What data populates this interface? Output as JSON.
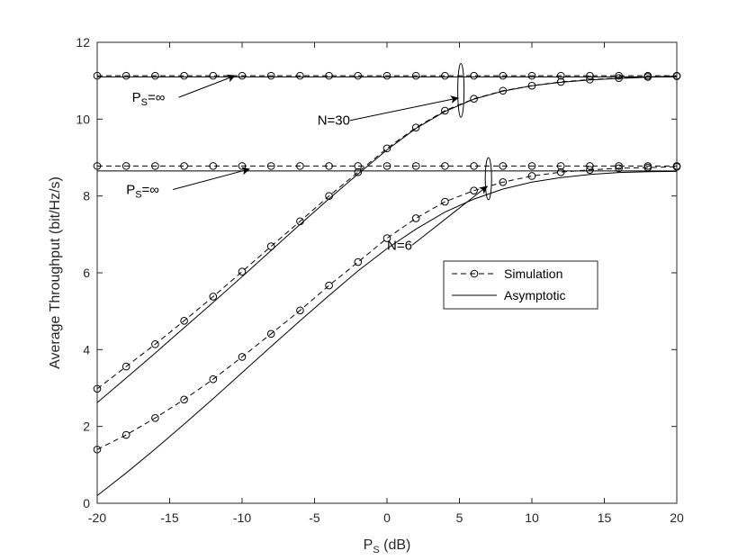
{
  "chart_data": {
    "type": "line",
    "title": "",
    "xlabel": {
      "main": "P",
      "sub": "S",
      "rest": " (dB)"
    },
    "ylabel": "Average Throughput (bit/Hz/s)",
    "xlim": [
      -20,
      20
    ],
    "ylim": [
      0,
      12
    ],
    "xticks": [
      -20,
      -15,
      -10,
      -5,
      0,
      5,
      10,
      15,
      20
    ],
    "xtick_labels": [
      "-20",
      "-15",
      "-10",
      "-5",
      "0",
      "5",
      "10",
      "15",
      "20"
    ],
    "yticks": [
      0,
      2,
      4,
      6,
      8,
      10,
      12
    ],
    "ytick_labels": [
      "0",
      "2",
      "4",
      "6",
      "8",
      "10",
      "12"
    ],
    "grid": false,
    "legend": {
      "placement": "center-right",
      "entries": [
        {
          "label": "Simulation",
          "style": "dashed-circle"
        },
        {
          "label": "Asymptotic",
          "style": "solid"
        }
      ]
    },
    "colors": {
      "line": "#000000",
      "axis": "#262626"
    },
    "series": [
      {
        "group": "N=30",
        "kind": "Simulation",
        "style": "dashed-circle",
        "x": [
          -20,
          -18,
          -16,
          -14,
          -12,
          -10,
          -8,
          -6,
          -4,
          -2,
          0,
          2,
          4,
          6,
          8,
          10,
          12,
          14,
          16,
          18,
          20
        ],
        "y": [
          2.98,
          3.56,
          4.14,
          4.75,
          5.38,
          6.03,
          6.69,
          7.34,
          8.0,
          8.62,
          9.24,
          9.78,
          10.22,
          10.53,
          10.74,
          10.87,
          10.97,
          11.03,
          11.07,
          11.1,
          11.12
        ]
      },
      {
        "group": "N=30",
        "kind": "Asymptotic",
        "style": "solid",
        "x": [
          -20,
          -18,
          -16,
          -14,
          -12,
          -10,
          -8,
          -6,
          -4,
          -2,
          0,
          2,
          4,
          6,
          8,
          10,
          12,
          14,
          16,
          18,
          20
        ],
        "y": [
          2.62,
          3.26,
          3.91,
          4.57,
          5.23,
          5.9,
          6.58,
          7.26,
          7.93,
          8.57,
          9.2,
          9.76,
          10.2,
          10.52,
          10.73,
          10.87,
          10.96,
          11.02,
          11.06,
          11.09,
          11.11
        ]
      },
      {
        "group": "N=30",
        "kind": "Simulation",
        "style": "dashed-circle",
        "label": "P_S=∞",
        "x": [
          -20,
          -18,
          -16,
          -14,
          -12,
          -10,
          -8,
          -6,
          -4,
          -2,
          0,
          2,
          4,
          6,
          8,
          10,
          12,
          14,
          16,
          18,
          20
        ],
        "y": [
          11.13,
          11.13,
          11.13,
          11.13,
          11.13,
          11.13,
          11.13,
          11.13,
          11.13,
          11.13,
          11.13,
          11.13,
          11.13,
          11.13,
          11.13,
          11.13,
          11.13,
          11.13,
          11.13,
          11.13,
          11.13
        ]
      },
      {
        "group": "N=30",
        "kind": "Asymptotic",
        "style": "solid",
        "label": "P_S=∞",
        "x": [
          -20,
          20
        ],
        "y": [
          11.1,
          11.1
        ]
      },
      {
        "group": "N=6",
        "kind": "Simulation",
        "style": "dashed-circle",
        "x": [
          -20,
          -18,
          -16,
          -14,
          -12,
          -10,
          -8,
          -6,
          -4,
          -2,
          0,
          2,
          4,
          6,
          8,
          10,
          12,
          14,
          16,
          18,
          20
        ],
        "y": [
          1.4,
          1.78,
          2.22,
          2.7,
          3.23,
          3.81,
          4.41,
          5.02,
          5.67,
          6.28,
          6.9,
          7.42,
          7.85,
          8.14,
          8.36,
          8.52,
          8.62,
          8.68,
          8.72,
          8.74,
          8.76
        ]
      },
      {
        "group": "N=6",
        "kind": "Asymptotic",
        "style": "solid",
        "x": [
          -20,
          -18,
          -16,
          -14,
          -12,
          -10,
          -8,
          -6,
          -4,
          -2,
          0,
          2,
          4,
          6,
          8,
          10,
          12,
          14,
          16,
          18,
          20
        ],
        "y": [
          0.2,
          0.79,
          1.41,
          2.06,
          2.72,
          3.4,
          4.08,
          4.75,
          5.41,
          6.05,
          6.63,
          7.14,
          7.58,
          7.92,
          8.18,
          8.36,
          8.48,
          8.56,
          8.61,
          8.63,
          8.64
        ]
      },
      {
        "group": "N=6",
        "kind": "Simulation",
        "style": "dashed-circle",
        "label": "P_S=∞",
        "x": [
          -20,
          -18,
          -16,
          -14,
          -12,
          -10,
          -8,
          -6,
          -4,
          -2,
          0,
          2,
          4,
          6,
          8,
          10,
          12,
          14,
          16,
          18,
          20
        ],
        "y": [
          8.78,
          8.78,
          8.78,
          8.78,
          8.78,
          8.78,
          8.78,
          8.78,
          8.78,
          8.78,
          8.78,
          8.78,
          8.78,
          8.78,
          8.78,
          8.78,
          8.78,
          8.78,
          8.78,
          8.78,
          8.78
        ]
      },
      {
        "group": "N=6",
        "kind": "Asymptotic",
        "style": "solid",
        "label": "P_S=∞",
        "x": [
          -20,
          20
        ],
        "y": [
          8.65,
          8.65
        ]
      }
    ],
    "annotations": [
      {
        "id": "ps-inf-top",
        "main": "P",
        "sub": "S",
        "rest": "=∞",
        "text_at": [
          -17.6,
          10.45
        ],
        "arrow_to": [
          -10.5,
          11.13
        ]
      },
      {
        "id": "n30",
        "text": "N=30",
        "text_at": [
          -4.8,
          9.85
        ],
        "arrow_to": [
          4.9,
          10.55
        ],
        "ellipse_at": [
          5.1,
          10.75
        ],
        "ellipse_ry": 0.7
      },
      {
        "id": "ps-inf-bottom",
        "main": "P",
        "sub": "S",
        "rest": "=∞",
        "text_at": [
          -18.0,
          8.05
        ],
        "arrow_to": [
          -9.5,
          8.7
        ]
      },
      {
        "id": "n6",
        "text": "N=6",
        "text_at": [
          0.0,
          6.6
        ],
        "arrow_to": [
          6.9,
          8.25
        ],
        "ellipse_at": [
          7.0,
          8.45
        ],
        "ellipse_ry": 0.55
      }
    ]
  }
}
